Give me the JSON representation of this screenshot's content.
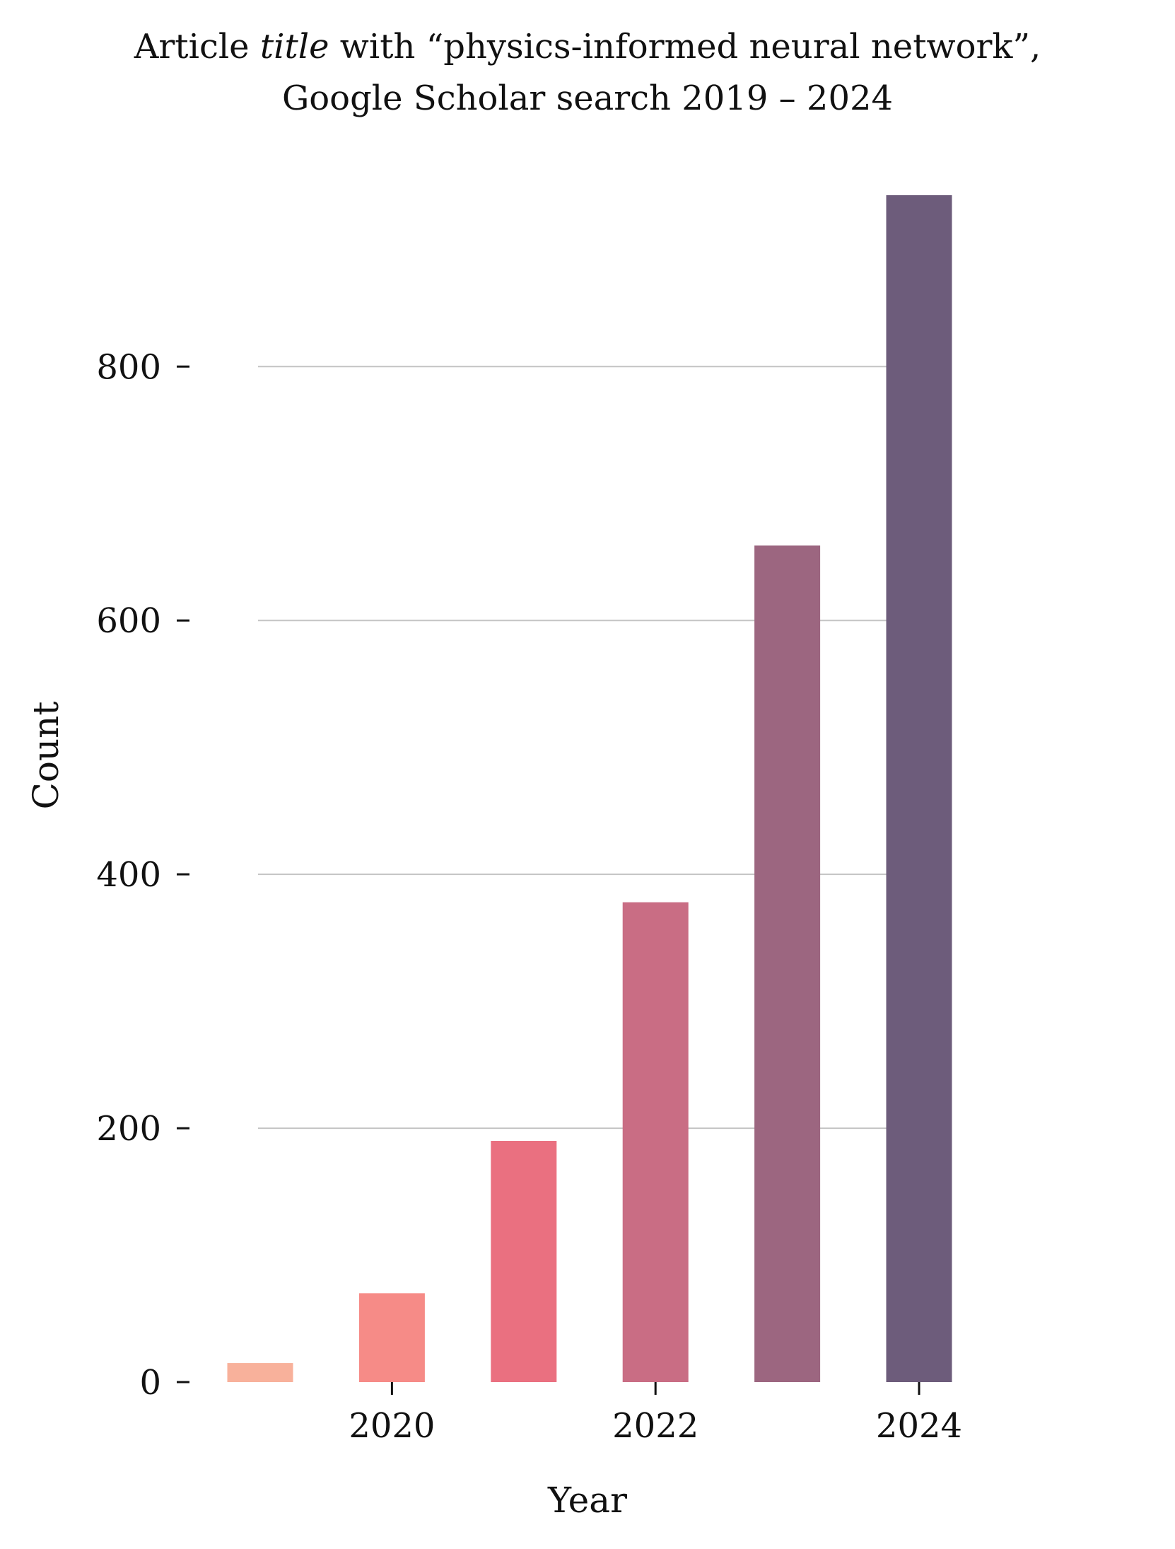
{
  "chart_data": {
    "type": "bar",
    "title_line1_prefix": "Article ",
    "title_line1_italic": "title",
    "title_line1_suffix": " with “physics-informed neural network”,",
    "title_line2": "Google Scholar search 2019 – 2024",
    "xlabel": "Year",
    "ylabel": "Count",
    "categories": [
      2019,
      2020,
      2021,
      2022,
      2023,
      2024
    ],
    "values": [
      15,
      70,
      190,
      378,
      659,
      935
    ],
    "colors": [
      "#f8b19b",
      "#f68b87",
      "#ea7080",
      "#c96d84",
      "#9c6680",
      "#6d5c7b"
    ],
    "x_ticks": [
      "2020",
      "2022",
      "2024"
    ],
    "x_tick_values": [
      2020,
      2022,
      2024
    ],
    "y_ticks": [
      "0",
      "200",
      "400",
      "600",
      "800"
    ],
    "y_tick_values": [
      0,
      200,
      400,
      600,
      800
    ],
    "ylim": [
      0,
      935
    ],
    "grid": "horizontal",
    "legend": "none"
  }
}
